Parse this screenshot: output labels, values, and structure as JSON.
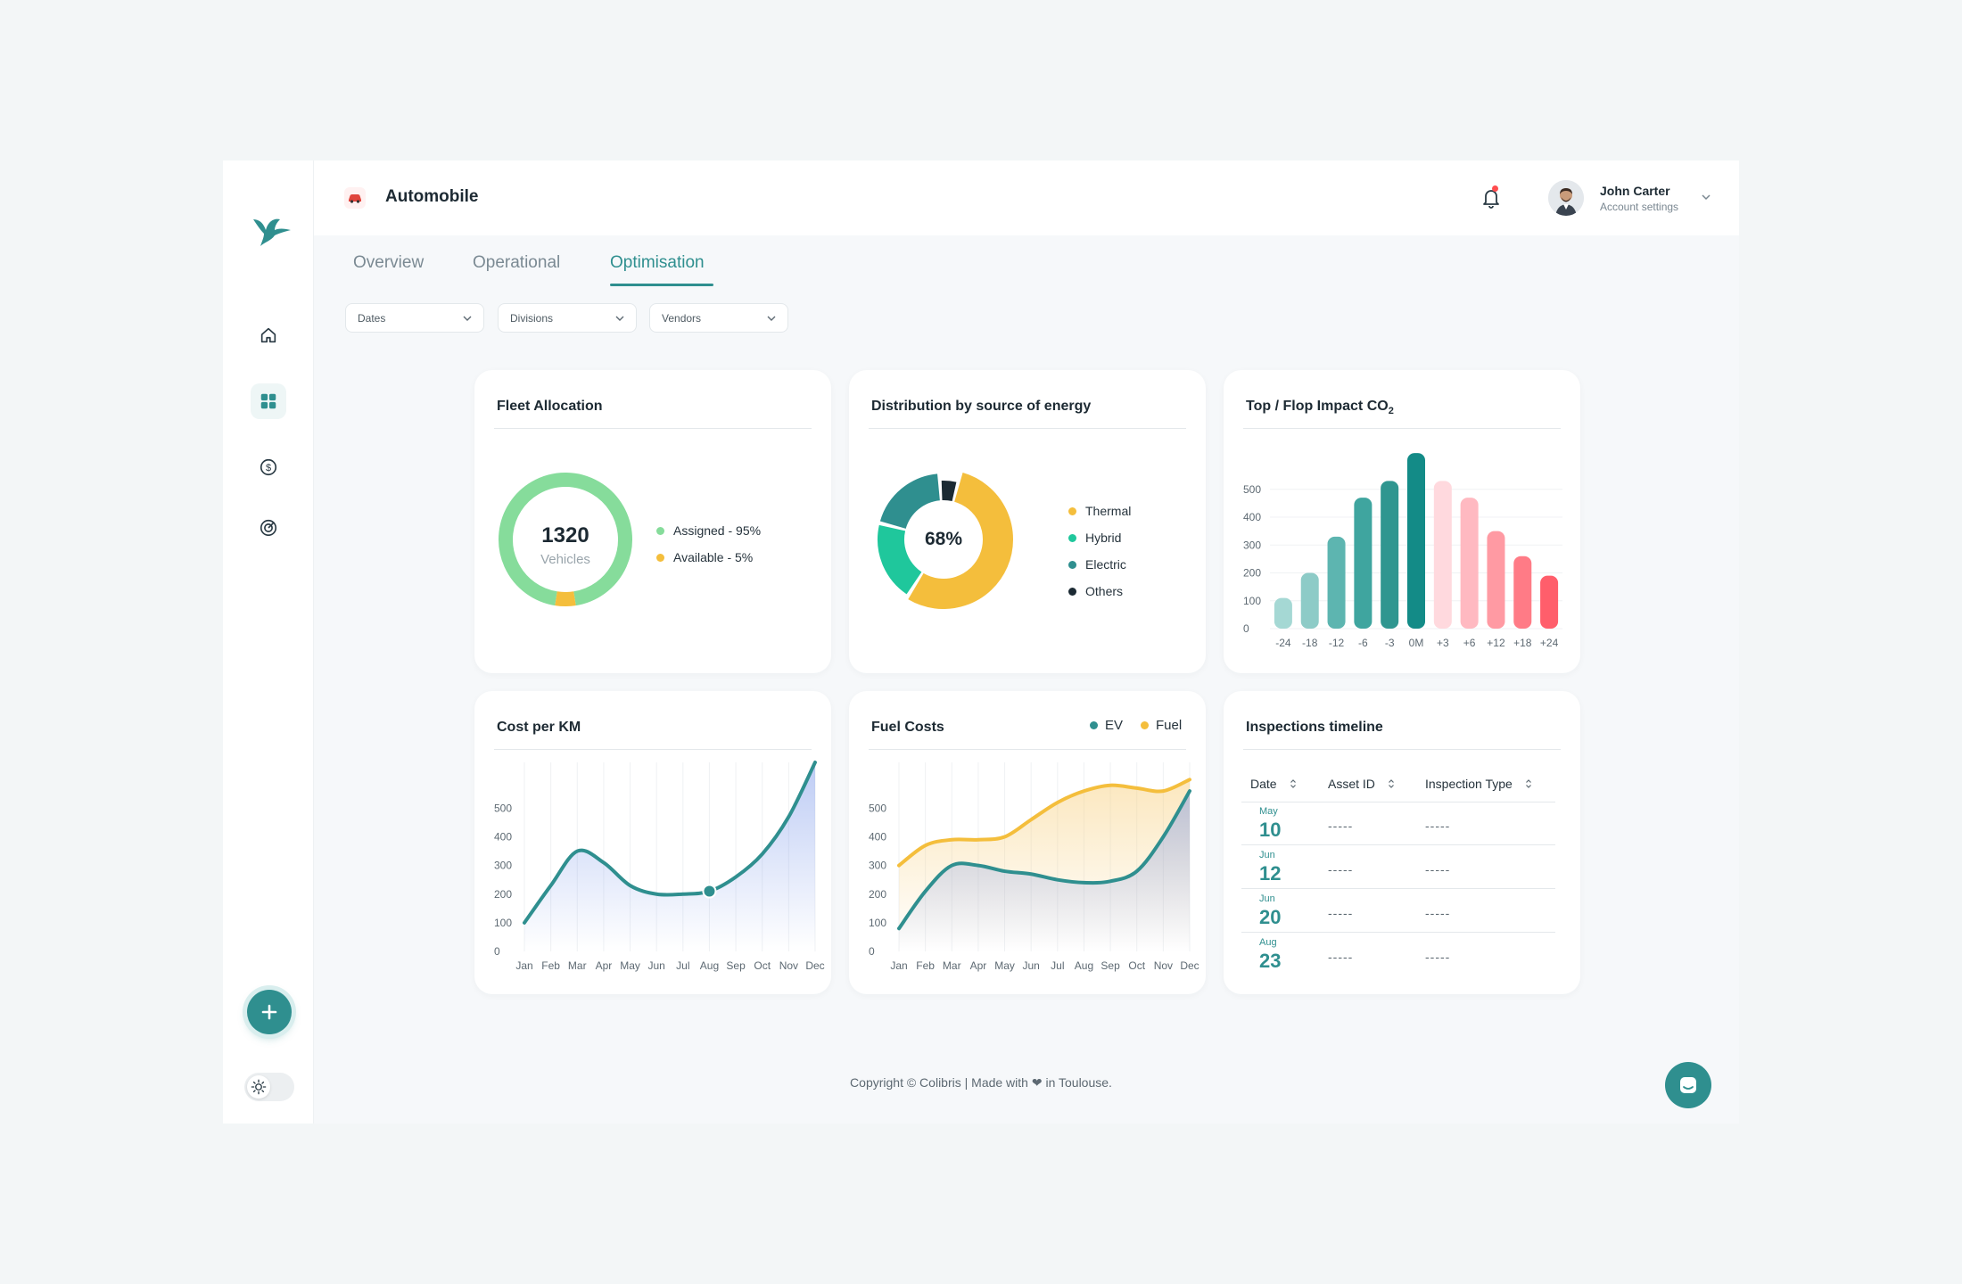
{
  "header": {
    "title": "Automobile",
    "user_name": "John Carter",
    "user_subtitle": "Account settings"
  },
  "tabs": [
    {
      "label": "Overview"
    },
    {
      "label": "Operational"
    },
    {
      "label": "Optimisation"
    }
  ],
  "filters": [
    {
      "label": "Dates"
    },
    {
      "label": "Divisions"
    },
    {
      "label": "Vendors"
    }
  ],
  "colors": {
    "accent": "#2f8f8f",
    "assigned": "#86dc9b",
    "available": "#f4be3c",
    "thermal": "#f4be3c",
    "hybrid": "#1fc79c",
    "electric": "#2f8f8f",
    "others": "#1b2a33"
  },
  "fleet": {
    "title": "Fleet Allocation",
    "total": "1320",
    "unit": "Vehicles",
    "legend": [
      "Assigned - 95%",
      "Available - 5%"
    ]
  },
  "energy": {
    "title": "Distribution by source of energy",
    "center": "68%",
    "legend": [
      "Thermal",
      "Hybrid",
      "Electric",
      "Others"
    ]
  },
  "co2": {
    "title_prefix": "Top / Flop Impact CO",
    "title_sub": "2"
  },
  "cost": {
    "title": "Cost per KM"
  },
  "fuel": {
    "title": "Fuel Costs",
    "legend": [
      "EV",
      "Fuel"
    ]
  },
  "inspections": {
    "title": "Inspections timeline",
    "columns": [
      "Date",
      "Asset ID",
      "Inspection Type"
    ],
    "rows": [
      {
        "month": "May",
        "day": "10",
        "asset": "-----",
        "type": "-----"
      },
      {
        "month": "Jun",
        "day": "12",
        "asset": "-----",
        "type": "-----"
      },
      {
        "month": "Jun",
        "day": "20",
        "asset": "-----",
        "type": "-----"
      },
      {
        "month": "Aug",
        "day": "23",
        "asset": "-----",
        "type": "-----"
      }
    ]
  },
  "footer": {
    "text": "Copyright © Colibris | Made with ❤ in Toulouse."
  },
  "chart_data": [
    {
      "type": "pie",
      "title": "Fleet Allocation",
      "categories": [
        "Assigned",
        "Available"
      ],
      "values": [
        95,
        5
      ]
    },
    {
      "type": "pie",
      "title": "Distribution by source of energy",
      "categories": [
        "Thermal",
        "Hybrid",
        "Electric",
        "Others"
      ],
      "values": [
        55,
        20,
        20,
        5
      ]
    },
    {
      "type": "bar",
      "title": "Top / Flop Impact CO2",
      "categories": [
        "-24",
        "-18",
        "-12",
        "-6",
        "-3",
        "0M",
        "+3",
        "+6",
        "+12",
        "+18",
        "+24"
      ],
      "values": [
        110,
        200,
        330,
        470,
        530,
        630,
        530,
        470,
        350,
        260,
        190
      ],
      "yticks": [
        0,
        100,
        200,
        300,
        400,
        500
      ],
      "ylim": [
        0,
        640
      ]
    },
    {
      "type": "area",
      "title": "Cost per KM",
      "categories": [
        "Jan",
        "Feb",
        "Mar",
        "Apr",
        "May",
        "Jun",
        "Jul",
        "Aug",
        "Sep",
        "Oct",
        "Nov",
        "Dec"
      ],
      "series": [
        {
          "values": [
            100,
            230,
            350,
            310,
            230,
            200,
            200,
            210,
            260,
            340,
            470,
            660
          ]
        }
      ],
      "yticks": [
        0,
        100,
        200,
        300,
        400,
        500
      ],
      "ylim": [
        0,
        660
      ]
    },
    {
      "type": "area",
      "title": "Fuel Costs",
      "categories": [
        "Jan",
        "Feb",
        "Mar",
        "Apr",
        "May",
        "Jun",
        "Jul",
        "Aug",
        "Sep",
        "Oct",
        "Nov",
        "Dec"
      ],
      "series": [
        {
          "name": "EV",
          "values": [
            80,
            210,
            300,
            300,
            280,
            270,
            250,
            240,
            245,
            280,
            400,
            560
          ]
        },
        {
          "name": "Fuel",
          "values": [
            300,
            370,
            390,
            390,
            400,
            460,
            520,
            560,
            580,
            570,
            560,
            600
          ]
        }
      ],
      "yticks": [
        0,
        100,
        200,
        300,
        400,
        500
      ],
      "ylim": [
        0,
        660
      ]
    }
  ]
}
